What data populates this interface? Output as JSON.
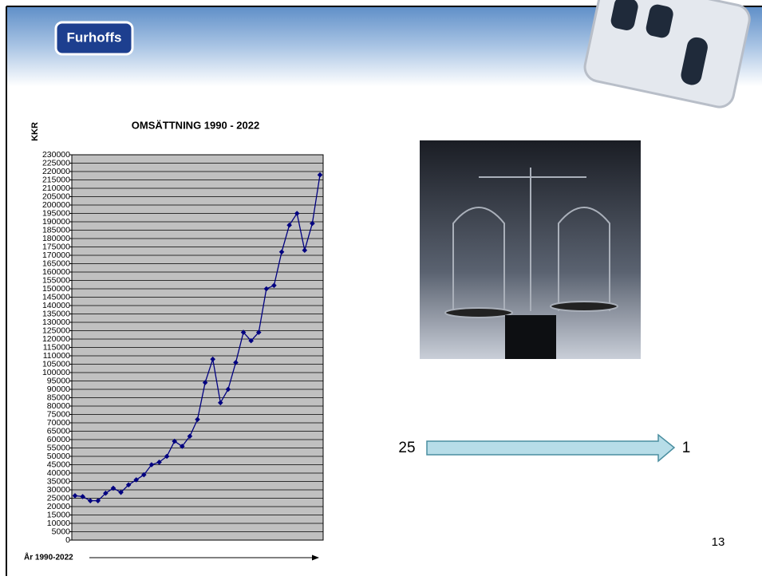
{
  "slide": {
    "logo": "Furhoffs",
    "arrow_from": "25",
    "arrow_to": "1",
    "page_number": "13"
  },
  "chart_data": {
    "type": "line",
    "title": "OMSÄTTNING 1990 - 2022",
    "y_label": "KKR",
    "x_label": "År 1990-2022",
    "series": [
      {
        "name": null,
        "color": "#000080",
        "values": [
          26500,
          26000,
          23500,
          23500,
          28000,
          31000,
          28500,
          33000,
          36000,
          39000,
          45000,
          46500,
          50000,
          59000,
          56000,
          62000,
          72000,
          94000,
          108000,
          82000,
          90000,
          106000,
          124000,
          119000,
          124000,
          150000,
          152000,
          172000,
          188000,
          195000,
          173000,
          189000,
          218000
        ]
      }
    ],
    "ylim": [
      0,
      230000
    ],
    "yticks": [
      0,
      5000,
      10000,
      15000,
      20000,
      25000,
      30000,
      35000,
      40000,
      45000,
      50000,
      55000,
      60000,
      65000,
      70000,
      75000,
      80000,
      85000,
      90000,
      95000,
      100000,
      105000,
      110000,
      115000,
      120000,
      125000,
      130000,
      135000,
      140000,
      145000,
      150000,
      155000,
      160000,
      165000,
      170000,
      175000,
      180000,
      185000,
      190000,
      195000,
      200000,
      205000,
      210000,
      215000,
      220000,
      225000,
      230000
    ],
    "grid": true,
    "plot_background": "#c0c0c0"
  }
}
